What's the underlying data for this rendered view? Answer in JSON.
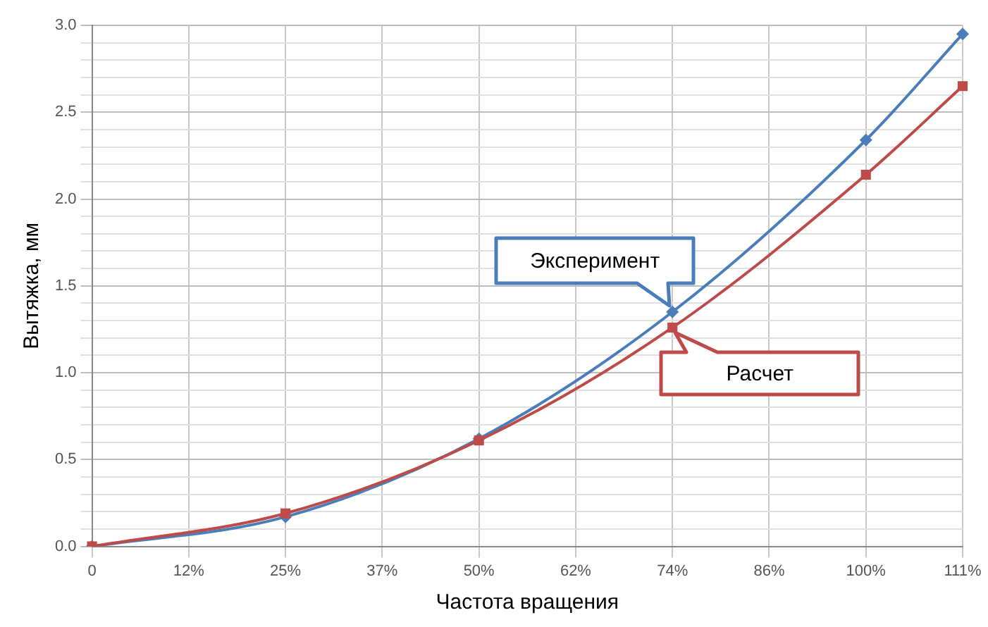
{
  "chart_data": {
    "type": "line",
    "xlabel": "Частота вращения",
    "ylabel": "Вытяжка, мм",
    "categories": [
      "0",
      "12%",
      "25%",
      "37%",
      "50%",
      "62%",
      "74%",
      "86%",
      "100%",
      "111%"
    ],
    "series": [
      {
        "name": "Эксперимент",
        "color": "#4a7ebb",
        "marker": "diamond",
        "values": [
          0,
          null,
          0.17,
          null,
          0.62,
          null,
          1.35,
          null,
          2.34,
          2.95
        ]
      },
      {
        "name": "Расчет",
        "color": "#be4b48",
        "marker": "square",
        "values": [
          0,
          null,
          0.19,
          null,
          0.61,
          null,
          1.26,
          null,
          2.14,
          2.65
        ]
      }
    ],
    "ylim": [
      0,
      3
    ],
    "yticks": [
      {
        "value": 0,
        "label": "0.0"
      },
      {
        "value": 0.1,
        "label": null
      },
      {
        "value": 0.2,
        "label": null
      },
      {
        "value": 0.3,
        "label": null
      },
      {
        "value": 0.4,
        "label": null
      },
      "0.5",
      {
        "value": 0.6,
        "label": null
      },
      {
        "value": 0.7,
        "label": null
      },
      {
        "value": 0.8,
        "label": null
      },
      {
        "value": 0.9,
        "label": null
      },
      {
        "value": 1,
        "label": "1.0"
      },
      {
        "value": 1.1,
        "label": null
      },
      {
        "value": 1.2,
        "label": null
      },
      {
        "value": 1.3,
        "label": null
      },
      {
        "value": 1.4,
        "label": null
      },
      1.5,
      {
        "value": 1.6,
        "label": null
      },
      {
        "value": 1.7,
        "label": null
      },
      {
        "value": 1.8,
        "label": null
      },
      {
        "value": 1.9,
        "label": null
      },
      {
        "value": 2,
        "label": "2.0"
      },
      {
        "value": 2.1,
        "label": null
      },
      {
        "value": 2.2,
        "label": null
      },
      {
        "value": 2.3,
        "label": null
      },
      {
        "value": 2.4,
        "label": null
      },
      2.5,
      {
        "value": 2.6,
        "label": null
      },
      {
        "value": 2.7,
        "label": null
      },
      {
        "value": 2.8,
        "label": null
      },
      {
        "value": 2.9,
        "label": null
      },
      {
        "value": 3,
        "label": "3.0"
      }
    ],
    "grid": true,
    "legend": false
  }
}
